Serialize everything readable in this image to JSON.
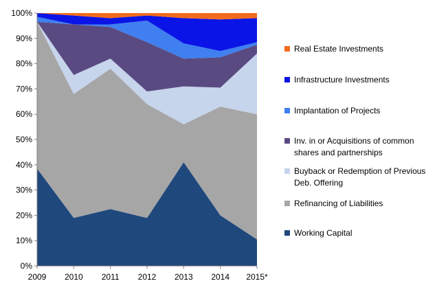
{
  "chart_data": {
    "type": "area",
    "stacked": true,
    "normalized": true,
    "categories": [
      "2009",
      "2010",
      "2011",
      "2012",
      "2013",
      "2014",
      "2015*"
    ],
    "ylim": [
      0,
      100
    ],
    "yticks": [
      "0%",
      "10%",
      "20%",
      "30%",
      "40%",
      "50%",
      "60%",
      "70%",
      "80%",
      "90%",
      "100%"
    ],
    "grid": false,
    "legend_position": "right",
    "series": [
      {
        "name": "Working Capital",
        "color": "#1F497D",
        "values": [
          38.5,
          19,
          22.5,
          19,
          41,
          20,
          10.5
        ]
      },
      {
        "name": "Refinancing of Liabilities",
        "color": "#A6A6A6",
        "values": [
          58,
          49,
          55.5,
          45,
          15,
          43,
          49.5
        ]
      },
      {
        "name": "Buyback or Redemption of Previous Deb. Offering",
        "color": "#C6D4EC",
        "values": [
          0,
          7.5,
          4,
          5,
          15,
          7.5,
          24
        ]
      },
      {
        "name": "Inv. in or Acquisitions of common shares and partnerships",
        "color": "#5A4A82",
        "values": [
          0,
          20,
          12.5,
          19.5,
          11,
          12,
          3.5
        ]
      },
      {
        "name": "Implantation of Projects",
        "color": "#3F7FF0",
        "values": [
          2,
          0,
          1,
          8.5,
          6,
          2.5,
          1
        ]
      },
      {
        "name": "Infrastructure Investments",
        "color": "#0B14E6",
        "values": [
          1.5,
          3.5,
          2.5,
          2,
          10,
          12.5,
          9.5
        ]
      },
      {
        "name": "Real Estate Investments",
        "color": "#F26B1D",
        "values": [
          0,
          1,
          2,
          1,
          2,
          2.5,
          2
        ]
      }
    ]
  }
}
